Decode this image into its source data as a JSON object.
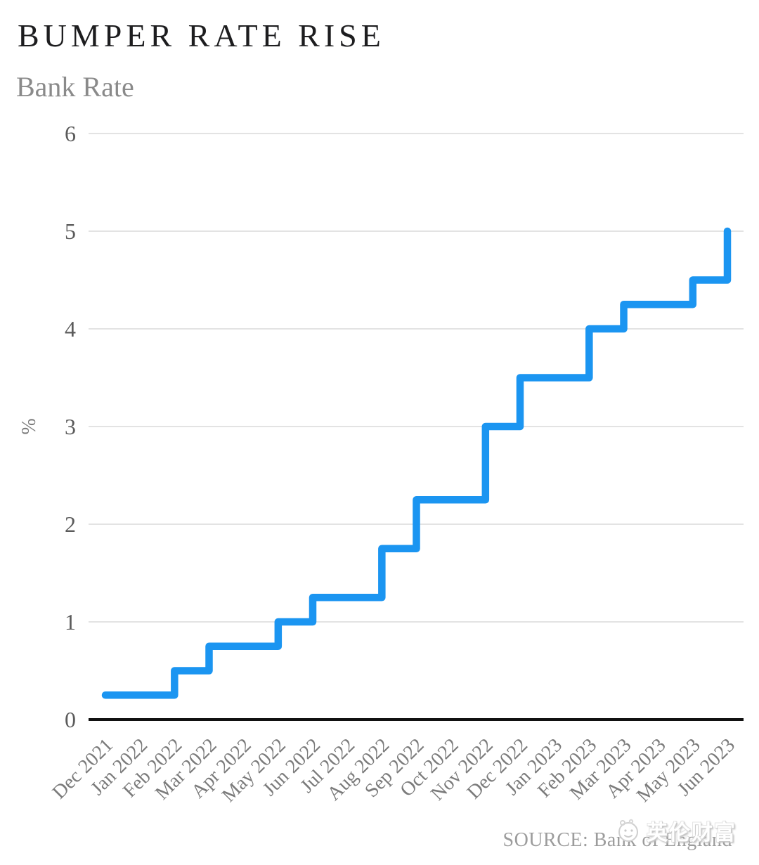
{
  "header": {
    "title": "BUMPER RATE RISE",
    "subtitle": "Bank Rate"
  },
  "chart_data": {
    "type": "line",
    "step_style": "step-before",
    "series_name": "Bank Rate",
    "categories": [
      "Dec 2021",
      "Jan 2022",
      "Feb 2022",
      "Mar 2022",
      "Apr 2022",
      "May 2022",
      "Jun 2022",
      "Jul 2022",
      "Aug 2022",
      "Sep 2022",
      "Oct 2022",
      "Nov 2022",
      "Dec 2022",
      "Jan 2023",
      "Feb 2023",
      "Mar 2023",
      "Apr 2023",
      "May 2023",
      "Jun 2023"
    ],
    "values": [
      0.25,
      0.25,
      0.5,
      0.75,
      0.75,
      1.0,
      1.25,
      1.25,
      1.75,
      2.25,
      2.25,
      3.0,
      3.5,
      3.5,
      4.0,
      4.25,
      4.25,
      4.5,
      5.0
    ],
    "title": "BUMPER RATE RISE",
    "subtitle": "Bank Rate",
    "xlabel": "",
    "ylabel": "%",
    "ylim": [
      0,
      6
    ],
    "yticks": [
      0,
      1,
      2,
      3,
      4,
      5,
      6
    ],
    "grid": "horizontal",
    "legend": "none",
    "line_color": "#1b95f1",
    "axis_color": "#111111",
    "gridline_color": "#e3e3e3",
    "ytick_label_color": "#5b5b5b",
    "xtick_label_color": "#7b7b7b"
  },
  "footer": {
    "source": "SOURCE: Bank of England",
    "watermark": "英伦财富"
  }
}
